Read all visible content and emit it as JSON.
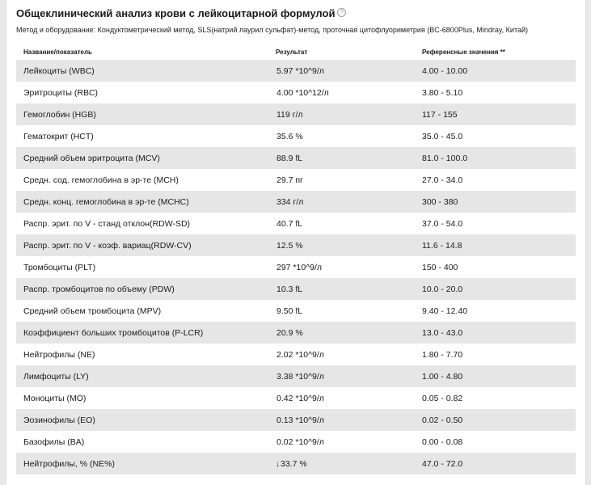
{
  "title": "Общеклинический анализ крови с лейкоцитарной формулой",
  "help_icon": "?",
  "method": "Метод и оборудование: Кондуктометрический метод, SLS(натрий лаурил сульфат)-метод, проточная цитофлуориметрия (BC-6800Plus, Mindray, Китай)",
  "headers": {
    "name": "Название/показатель",
    "result": "Результат",
    "reference": "Референсные значения **"
  },
  "rows": [
    {
      "name": "Лейкоциты (WBC)",
      "result": "5.97 *10^9/л",
      "reference": "4.00 - 10.00",
      "flag": ""
    },
    {
      "name": "Эритроциты (RBC)",
      "result": "4.00 *10^12/л",
      "reference": "3.80 - 5.10",
      "flag": ""
    },
    {
      "name": "Гемоглобин (HGB)",
      "result": "119 г/л",
      "reference": "117 - 155",
      "flag": ""
    },
    {
      "name": "Гематокрит (HCT)",
      "result": "35.6 %",
      "reference": "35.0 - 45.0",
      "flag": ""
    },
    {
      "name": "Средний объем эритроцита (MCV)",
      "result": "88.9 fL",
      "reference": "81.0 - 100.0",
      "flag": ""
    },
    {
      "name": "Средн. сод. гемоглобина в эр-те (MCH)",
      "result": "29.7 пг",
      "reference": "27.0 - 34.0",
      "flag": ""
    },
    {
      "name": "Средн. конц. гемоглобина в эр-те (MCHC)",
      "result": "334 г/л",
      "reference": "300 - 380",
      "flag": ""
    },
    {
      "name": "Распр. эрит. по V - станд отклон(RDW-SD)",
      "result": "40.7 fL",
      "reference": "37.0 - 54.0",
      "flag": ""
    },
    {
      "name": "Распр. эрит. по V - коэф. вариац(RDW-CV)",
      "result": "12.5 %",
      "reference": "11.6 - 14.8",
      "flag": ""
    },
    {
      "name": "Тромбоциты (PLT)",
      "result": "297 *10^9/л",
      "reference": "150 - 400",
      "flag": ""
    },
    {
      "name": "Распр. тромбоцитов по объему (PDW)",
      "result": "10.3 fL",
      "reference": "10.0 - 20.0",
      "flag": ""
    },
    {
      "name": "Средний объем тромбоцита (MPV)",
      "result": "9.50 fL",
      "reference": "9.40 - 12.40",
      "flag": ""
    },
    {
      "name": "Коэффициент больших тромбоцитов (P-LCR)",
      "result": "20.9 %",
      "reference": "13.0 - 43.0",
      "flag": ""
    },
    {
      "name": "Нейтрофилы (NE)",
      "result": "2.02 *10^9/л",
      "reference": "1.80 - 7.70",
      "flag": ""
    },
    {
      "name": "Лимфоциты (LY)",
      "result": "3.38 *10^9/л",
      "reference": "1.00 - 4.80",
      "flag": ""
    },
    {
      "name": "Моноциты (MO)",
      "result": "0.42 *10^9/л",
      "reference": "0.05 - 0.82",
      "flag": ""
    },
    {
      "name": "Эозинофилы (EO)",
      "result": "0.13 *10^9/л",
      "reference": "0.02 - 0.50",
      "flag": ""
    },
    {
      "name": "Базофилы (BA)",
      "result": "0.02 *10^9/л",
      "reference": "0.00 - 0.08",
      "flag": ""
    },
    {
      "name": "Нейтрофилы, % (NE%)",
      "result": "33.7 %",
      "reference": "47.0 - 72.0",
      "flag": "↓"
    }
  ]
}
